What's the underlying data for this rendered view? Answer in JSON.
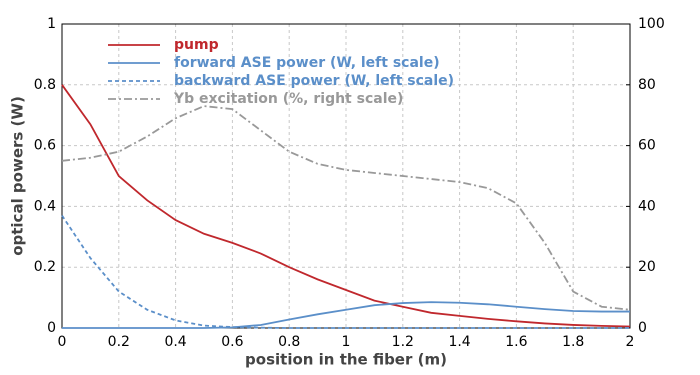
{
  "chart_data": {
    "type": "line",
    "xlabel": "position in the fiber (m)",
    "ylabel": "optical powers (W)",
    "x": [
      0,
      0.1,
      0.2,
      0.3,
      0.4,
      0.5,
      0.6,
      0.7,
      0.8,
      0.9,
      1,
      1.1,
      1.2,
      1.3,
      1.4,
      1.5,
      1.6,
      1.7,
      1.8,
      1.9,
      2
    ],
    "series": [
      {
        "name": "pump",
        "color": "#c0282d",
        "style": "solid",
        "values": [
          0.8,
          0.67,
          0.5,
          0.42,
          0.355,
          0.31,
          0.28,
          0.245,
          0.2,
          0.16,
          0.125,
          0.09,
          0.07,
          0.05,
          0.04,
          0.03,
          0.022,
          0.015,
          0.01,
          0.007,
          0.005
        ]
      },
      {
        "name": "forward ASE power (W, left scale)",
        "color": "#5b8fc9",
        "style": "solid",
        "values": [
          0,
          0,
          0,
          0,
          0,
          0,
          0.002,
          0.01,
          0.028,
          0.045,
          0.06,
          0.075,
          0.082,
          0.085,
          0.083,
          0.078,
          0.07,
          0.062,
          0.056,
          0.054,
          0.054
        ]
      },
      {
        "name": "backward ASE power (W, left scale)",
        "color": "#5b8fc9",
        "style": "dashed",
        "values": [
          0.37,
          0.23,
          0.12,
          0.06,
          0.025,
          0.008,
          0.003,
          0.001,
          0,
          0,
          0,
          0,
          0,
          0,
          0,
          0,
          0,
          0,
          0,
          0,
          0
        ]
      },
      {
        "name": "Yb excitation (%, right scale)",
        "color": "#999999",
        "style": "dashdot",
        "axis": "y2",
        "values": [
          55,
          56,
          58,
          63,
          69,
          73,
          72,
          65,
          58,
          54,
          52,
          51,
          50,
          49,
          48,
          46,
          41,
          28,
          12,
          7,
          6
        ]
      }
    ],
    "xlim": [
      0,
      2
    ],
    "xticks": [
      0,
      0.2,
      0.4,
      0.6,
      0.8,
      1,
      1.2,
      1.4,
      1.6,
      1.8,
      2
    ],
    "ylim": [
      0,
      1
    ],
    "yticks": [
      0,
      0.2,
      0.4,
      0.6,
      0.8,
      1
    ],
    "y2lim": [
      0,
      100
    ],
    "y2ticks": [
      0,
      20,
      40,
      60,
      80,
      100
    ],
    "grid": true,
    "legend": "upper-left"
  }
}
